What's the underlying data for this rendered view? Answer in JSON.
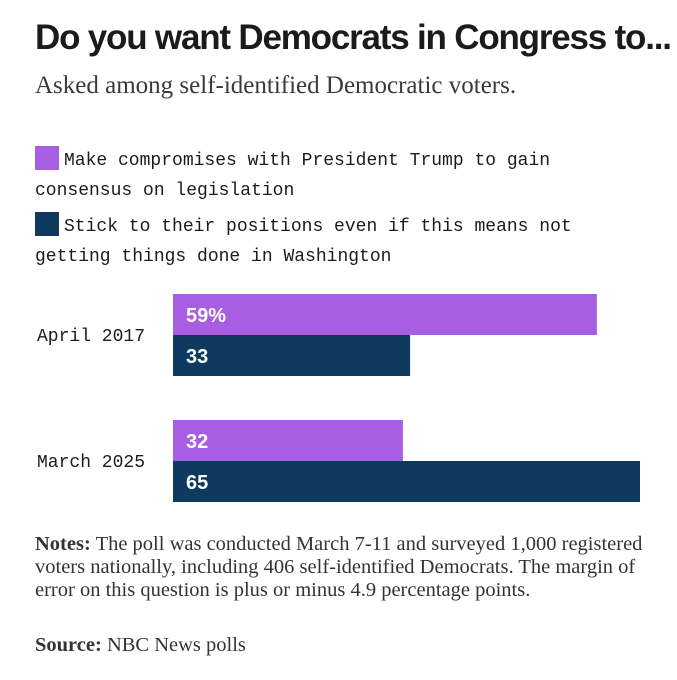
{
  "colors": {
    "compromise": "#a75ee3",
    "stick": "#0f3a5f",
    "text": "#1b1b1b"
  },
  "chart_data": {
    "type": "bar",
    "orientation": "horizontal",
    "title": "Do you want Democrats in Congress to...",
    "subtitle": "Asked among self-identified Democratic voters.",
    "categories": [
      "April 2017",
      "March 2025"
    ],
    "series": [
      {
        "name": "Make compromises with President Trump to gain consensus on legislation",
        "color": "#a75ee3",
        "values": [
          59,
          32
        ],
        "labels": [
          "59%",
          "32"
        ]
      },
      {
        "name": "Stick to their positions even if this means not getting things done in Washington",
        "color": "#0f3a5f",
        "values": [
          33,
          65
        ],
        "labels": [
          "33",
          "65"
        ]
      }
    ],
    "xlim": [
      0,
      65
    ],
    "grid": false,
    "legend_position": "top-left"
  },
  "notes": {
    "label": "Notes:",
    "text": "The poll was conducted March 7-11 and surveyed 1,000 registered voters nationally, including 406 self-identified Democrats. The margin of error on this question is plus or minus 4.9 percentage points."
  },
  "source": {
    "label": "Source:",
    "text": "NBC News polls"
  }
}
